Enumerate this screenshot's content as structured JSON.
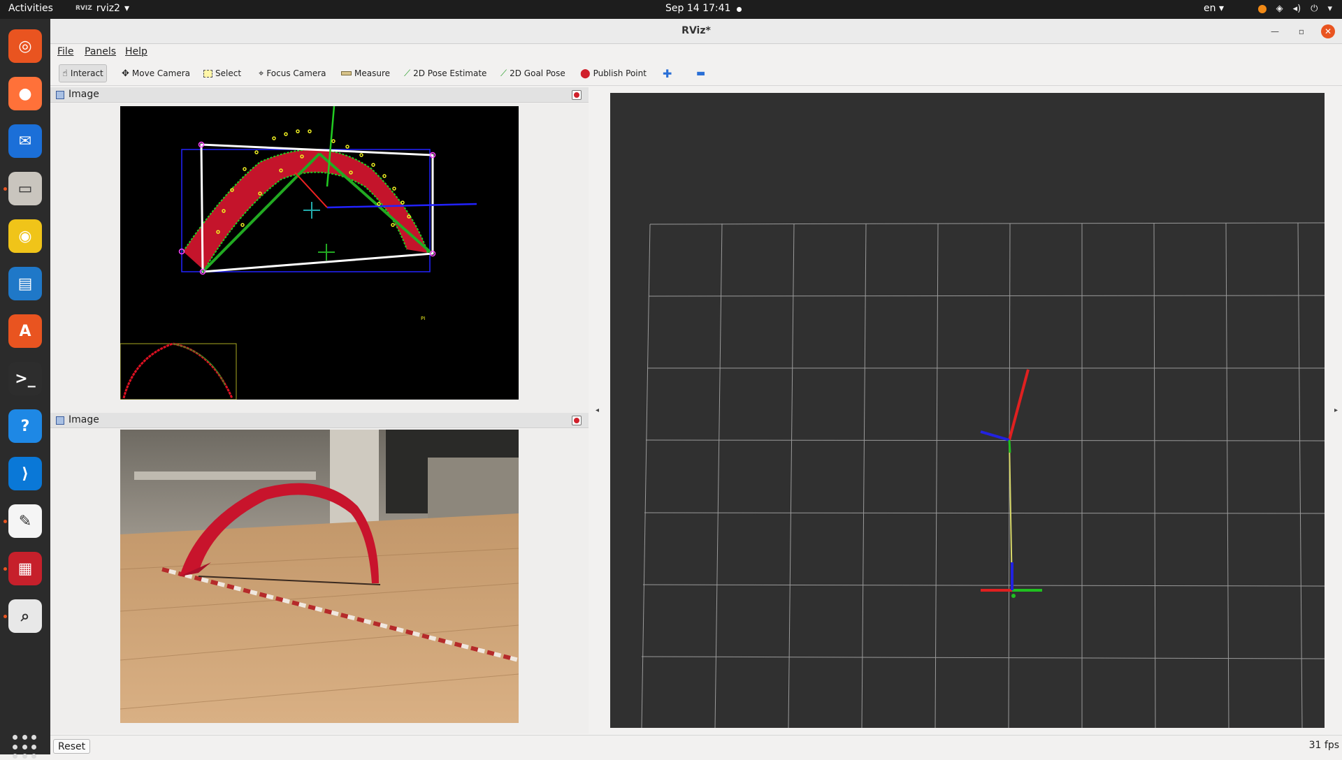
{
  "topbar": {
    "activities": "Activities",
    "app_name": "rviz2",
    "app_badge": "RVIZ",
    "clock": "Sep 14  17:41",
    "language": "en"
  },
  "dock": {
    "apps": [
      {
        "name": "ubuntu-icon",
        "color": "#e95420",
        "glyph": "◎"
      },
      {
        "name": "firefox-icon",
        "color": "#ff7139",
        "glyph": "●"
      },
      {
        "name": "thunderbird-icon",
        "color": "#1b6fd8",
        "glyph": "✉"
      },
      {
        "name": "files-icon",
        "color": "#c9c5be",
        "glyph": "▭"
      },
      {
        "name": "rhythmbox-icon",
        "color": "#f0c419",
        "glyph": "◉"
      },
      {
        "name": "writer-icon",
        "color": "#1f78c8",
        "glyph": "▤"
      },
      {
        "name": "app-center-icon",
        "color": "#e95420",
        "glyph": "A"
      },
      {
        "name": "terminal-icon",
        "color": "#2d2d2d",
        "glyph": ">_"
      },
      {
        "name": "help-icon",
        "color": "#1e88e5",
        "glyph": "?"
      },
      {
        "name": "vscode-icon",
        "color": "#0a78d7",
        "glyph": "⟩"
      },
      {
        "name": "text-editor-icon",
        "color": "#f5f5f5",
        "glyph": "✎"
      },
      {
        "name": "rqt-icon",
        "color": "#c6202b",
        "glyph": "▦"
      },
      {
        "name": "search-icon",
        "color": "#e8e8e8",
        "glyph": "⌕"
      }
    ]
  },
  "window": {
    "title": "RViz*",
    "menu": [
      "File",
      "Panels",
      "Help"
    ],
    "toolbar": [
      {
        "label": "Interact",
        "icon": "hand-icon",
        "active": true
      },
      {
        "label": "Move Camera",
        "icon": "move-camera-icon"
      },
      {
        "label": "Select",
        "icon": "select-icon"
      },
      {
        "label": "Focus Camera",
        "icon": "focus-camera-icon"
      },
      {
        "label": "Measure",
        "icon": "ruler-icon"
      },
      {
        "label": "2D Pose Estimate",
        "icon": "pose-estimate-icon"
      },
      {
        "label": "2D Goal Pose",
        "icon": "goal-pose-icon"
      },
      {
        "label": "Publish Point",
        "icon": "publish-point-icon"
      }
    ]
  },
  "panels": [
    {
      "title": "Image"
    },
    {
      "title": "Image"
    }
  ],
  "statusbar": {
    "reset": "Reset",
    "fps": "31 fps"
  }
}
